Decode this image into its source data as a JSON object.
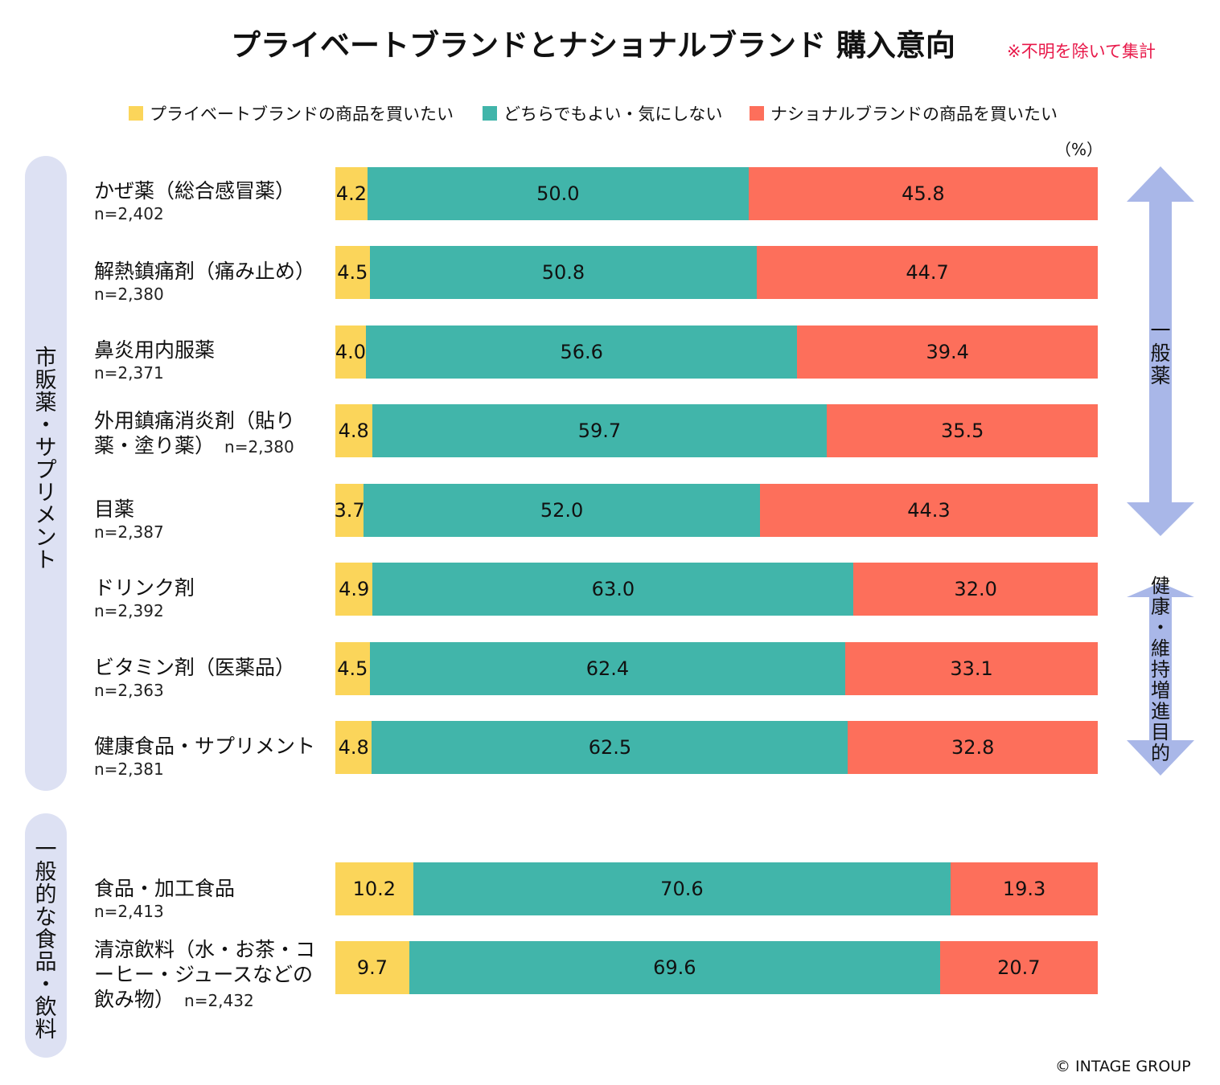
{
  "title": "プライベートブランドとナショナルブランド 購入意向",
  "note": "※不明を除いて集計",
  "unit": "（%）",
  "copyright": "© INTAGE GROUP",
  "colors": {
    "pb": "#fbd55a",
    "neutral": "#41b5aa",
    "nb": "#fd6f5b",
    "pill": "#dde1f3",
    "arrow": "#a9b7e8",
    "note": "#e8194a"
  },
  "groups": [
    {
      "label": "市販薬・サプリメント"
    },
    {
      "label": "一般的な食品・飲料"
    }
  ],
  "arrows": [
    {
      "label": "一般薬"
    },
    {
      "label": "健康・維持増進目的"
    }
  ],
  "chart_data": {
    "type": "bar",
    "orientation": "horizontal",
    "stacked": true,
    "title": "プライベートブランドとナショナルブランド 購入意向",
    "unit": "%",
    "xlim": [
      0,
      100
    ],
    "legend": "top",
    "series": [
      {
        "name": "プライベートブランドの商品を買いたい",
        "values": [
          4.2,
          4.5,
          4.0,
          4.8,
          3.7,
          4.9,
          4.5,
          4.8,
          10.2,
          9.7
        ]
      },
      {
        "name": "どちらでもよい・気にしない",
        "values": [
          50.0,
          50.8,
          56.6,
          59.7,
          52.0,
          63.0,
          62.4,
          62.5,
          70.6,
          69.6
        ]
      },
      {
        "name": "ナショナルブランドの商品を買いたい",
        "values": [
          45.8,
          44.7,
          39.4,
          35.5,
          44.3,
          32.0,
          33.1,
          32.8,
          19.3,
          20.7
        ]
      }
    ],
    "labels": [
      "4.2",
      "4.5",
      "4.0",
      "4.8",
      "3.7",
      "4.9",
      "4.5",
      "4.8",
      "10.2",
      "9.7"
    ],
    "labels_mid": [
      "50.0",
      "50.8",
      "56.6",
      "59.7",
      "52.0",
      "63.0",
      "62.4",
      "62.5",
      "70.6",
      "69.6"
    ],
    "labels_right": [
      "45.8",
      "44.7",
      "39.4",
      "35.5",
      "44.3",
      "32.0",
      "33.1",
      "32.8",
      "19.3",
      "20.7"
    ],
    "categories": [
      {
        "name": "かぜ薬（総合感冒薬）",
        "n": "n=2,402"
      },
      {
        "name": "解熱鎮痛剤（痛み止め）",
        "n": "n=2,380"
      },
      {
        "name": "鼻炎用内服薬",
        "n": "n=2,371"
      },
      {
        "name": "外用鎮痛消炎剤（貼り薬・塗り薬）",
        "n": "n=2,380"
      },
      {
        "name": "目薬",
        "n": "n=2,387"
      },
      {
        "name": "ドリンク剤",
        "n": "n=2,392"
      },
      {
        "name": "ビタミン剤（医薬品）",
        "n": "n=2,363"
      },
      {
        "name": "健康食品・サプリメント",
        "n": "n=2,381"
      },
      {
        "name": "食品・加工食品",
        "n": "n=2,413"
      },
      {
        "name": "清涼飲料（水・お茶・コーヒー・ジュースなどの飲み物）",
        "n": "n=2,432"
      }
    ]
  },
  "legend": [
    {
      "label": "プライベートブランドの商品を買いたい"
    },
    {
      "label": "どちらでもよい・気にしない"
    },
    {
      "label": "ナショナルブランドの商品を買いたい"
    }
  ]
}
